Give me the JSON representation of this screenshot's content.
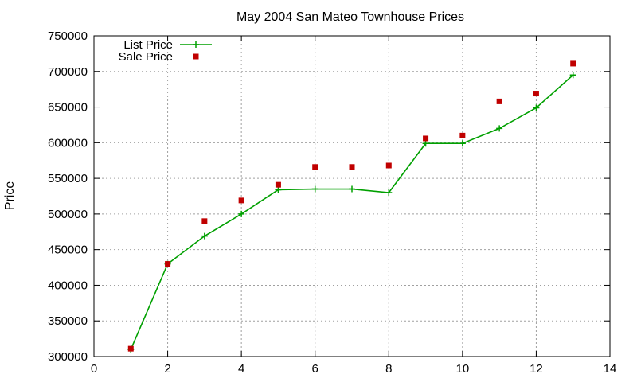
{
  "chart_data": {
    "type": "line",
    "title": "May 2004 San Mateo Townhouse Prices",
    "xlabel": "",
    "ylabel": "Price",
    "xlim": [
      0,
      14
    ],
    "ylim": [
      300000,
      750000
    ],
    "x_ticks": [
      "0",
      "2",
      "4",
      "6",
      "8",
      "10",
      "12",
      "14"
    ],
    "y_ticks": [
      "300000",
      "350000",
      "400000",
      "450000",
      "500000",
      "550000",
      "600000",
      "650000",
      "700000",
      "750000"
    ],
    "grid": true,
    "legend_position": "top-left",
    "series": [
      {
        "name": "List Price",
        "style": "linespoints",
        "marker": "plus",
        "color": "#00a000",
        "x": [
          1,
          2,
          3,
          4,
          5,
          6,
          7,
          8,
          9,
          10,
          11,
          12,
          13
        ],
        "values": [
          310000,
          430000,
          469000,
          500000,
          534000,
          535000,
          535000,
          530000,
          599000,
          599000,
          620000,
          649000,
          695000
        ]
      },
      {
        "name": "Sale Price",
        "style": "points",
        "marker": "square",
        "color": "#c00000",
        "x": [
          1,
          2,
          3,
          4,
          5,
          6,
          7,
          8,
          9,
          10,
          11,
          12,
          13
        ],
        "values": [
          311000,
          430000,
          490000,
          519000,
          541000,
          566000,
          566000,
          568000,
          606000,
          610000,
          658000,
          669000,
          711000
        ]
      }
    ]
  }
}
